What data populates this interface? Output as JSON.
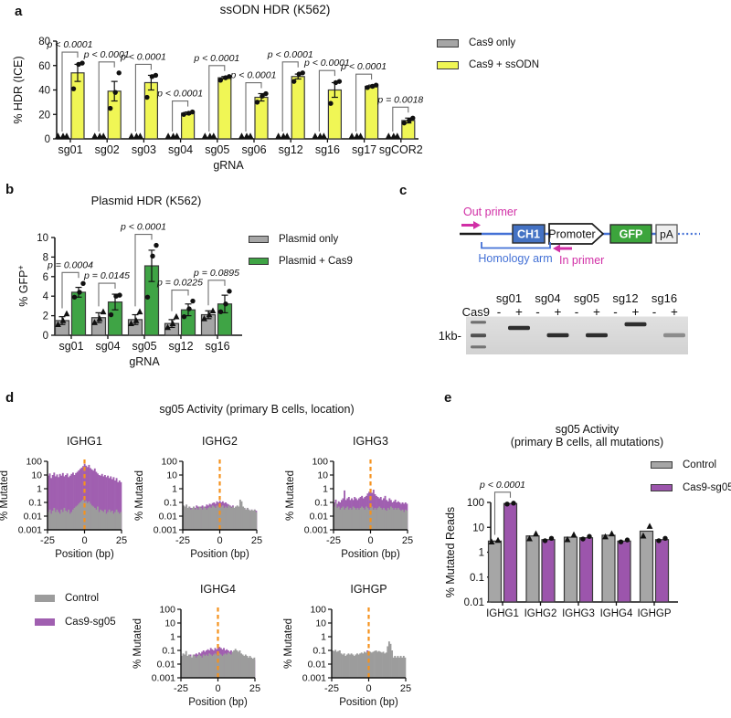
{
  "figure": {
    "panel_labels": {
      "a": "a",
      "b": "b",
      "c": "c",
      "d": "d",
      "e": "e"
    }
  },
  "chart_data": [
    {
      "id": "a",
      "type": "bar",
      "title": "ssODN HDR (K562)",
      "xlabel": "gRNA",
      "ylabel": "% HDR (ICE)",
      "ylim": [
        0,
        80
      ],
      "yticks": [
        0,
        20,
        40,
        60,
        80
      ],
      "categories": [
        "sg01",
        "sg02",
        "sg03",
        "sg04",
        "sg05",
        "sg06",
        "sg12",
        "sg16",
        "sg17",
        "sgCOR2"
      ],
      "series": [
        {
          "name": "Cas9 only",
          "color": "#A6A6A6",
          "marker": "triangle",
          "values": [
            0,
            0,
            0,
            0,
            0,
            0,
            0,
            0,
            0,
            0
          ],
          "errors": [
            0,
            0,
            0,
            0,
            0,
            0,
            0,
            0,
            0,
            0
          ],
          "points": [
            [
              0,
              0,
              0
            ],
            [
              0,
              0,
              0
            ],
            [
              0,
              0,
              0
            ],
            [
              0,
              0,
              0
            ],
            [
              0,
              0,
              0
            ],
            [
              0,
              0,
              0
            ],
            [
              0,
              0,
              0
            ],
            [
              0,
              0,
              0
            ],
            [
              0,
              0,
              0
            ],
            [
              0,
              0,
              0
            ]
          ]
        },
        {
          "name": "Cas9 + ssODN",
          "color": "#F0F655",
          "marker": "circle",
          "values": [
            54,
            39,
            46,
            21,
            50,
            34,
            51,
            40,
            43,
            15
          ],
          "errors": [
            7,
            8,
            6,
            1,
            1,
            3,
            2,
            6,
            1,
            2
          ],
          "points": [
            [
              41,
              61,
              62
            ],
            [
              25,
              38,
              54
            ],
            [
              34,
              51,
              52
            ],
            [
              20,
              21,
              22
            ],
            [
              48,
              50,
              51
            ],
            [
              30,
              35,
              37
            ],
            [
              47,
              53,
              54
            ],
            [
              29,
              46,
              47
            ],
            [
              42,
              43,
              44
            ],
            [
              13,
              15,
              17
            ]
          ]
        }
      ],
      "p_values": [
        "p < 0.0001",
        "p < 0.0001",
        "p < 0.0001",
        "p < 0.0001",
        "p < 0.0001",
        "p < 0.0001",
        "p < 0.0001",
        "p < 0.0001",
        "p < 0.0001",
        "p = 0.0018"
      ]
    },
    {
      "id": "b",
      "type": "bar",
      "title": "Plasmid HDR (K562)",
      "xlabel": "gRNA",
      "ylabel": "% GFP",
      "ylabel_sup": "+",
      "ylim": [
        0,
        10
      ],
      "yticks": [
        0,
        2,
        4,
        6,
        8,
        10
      ],
      "categories": [
        "sg01",
        "sg04",
        "sg05",
        "sg12",
        "sg16"
      ],
      "series": [
        {
          "name": "Plasmid only",
          "color": "#A6A6A6",
          "marker": "triangle",
          "values": [
            1.5,
            1.8,
            1.6,
            1.2,
            2.1
          ],
          "errors": [
            0.4,
            0.5,
            0.5,
            0.4,
            0.4
          ],
          "points": [
            [
              1.1,
              1.5,
              2.2
            ],
            [
              1.3,
              1.7,
              2.4
            ],
            [
              1.2,
              1.5,
              2.4
            ],
            [
              0.8,
              1.2,
              1.9
            ],
            [
              1.7,
              2.1,
              2.5
            ]
          ]
        },
        {
          "name": "Plasmid + Cas9",
          "color": "#3FA445",
          "marker": "circle",
          "values": [
            4.4,
            3.4,
            7.1,
            2.6,
            3.2
          ],
          "errors": [
            0.5,
            0.8,
            1.6,
            0.6,
            0.9
          ],
          "points": [
            [
              3.9,
              4.4,
              5.3
            ],
            [
              2.1,
              4.0,
              4.1
            ],
            [
              3.9,
              8.1,
              9.2
            ],
            [
              1.9,
              2.7,
              3.5
            ],
            [
              2.4,
              3.2,
              4.5
            ]
          ]
        }
      ],
      "p_values": [
        "p = 0.0004",
        "p = 0.0145",
        "p < 0.0001",
        "p = 0.0225",
        "p = 0.0895"
      ]
    },
    {
      "id": "d",
      "type": "histogram",
      "title": "sg05 Activity (primary B cells, location)",
      "xlabel": "Position (bp)",
      "ylabel": "% Mutated",
      "yscale": "log",
      "yticks": [
        100,
        10,
        1,
        0.1,
        0.01,
        0.001
      ],
      "xlim": [
        -25,
        25
      ],
      "xticks": [
        -25,
        0,
        25
      ],
      "cut_site_x": 0,
      "cut_site_color": "#F5921E",
      "legend": [
        {
          "name": "Control",
          "color": "#9C9C9C"
        },
        {
          "name": "Cas9-sg05",
          "color": "#A05FB0"
        }
      ],
      "subplots": [
        {
          "title": "IGHG1",
          "control": [
            0.02,
            0.03,
            0.015,
            0.025,
            0.04,
            0.02,
            0.03,
            0.02,
            0.015,
            0.03,
            0.02,
            0.04,
            0.025,
            0.02,
            0.03,
            0.015,
            0.02,
            0.03,
            0.04,
            0.05,
            0.06,
            0.08,
            0.1,
            0.13,
            0.16,
            0.11,
            0.13,
            0.09,
            0.12,
            0.08,
            0.06,
            0.05,
            0.04,
            0.03,
            0.05,
            0.02,
            0.03,
            0.025,
            0.02,
            0.03,
            0.015,
            0.02,
            0.03,
            0.02,
            0.025,
            0.015,
            0.02,
            0.03,
            0.02,
            0.015,
            0.02
          ],
          "cas9": [
            9,
            13,
            6,
            10,
            15,
            8,
            11,
            7,
            12,
            9,
            14,
            8,
            10,
            13,
            7,
            9,
            12,
            15,
            10,
            14,
            17,
            22,
            28,
            35,
            45,
            65,
            48,
            38,
            55,
            32,
            26,
            21,
            30,
            17,
            13,
            10,
            9,
            12,
            8,
            10,
            7,
            9,
            6,
            8,
            5,
            7,
            4,
            6,
            3,
            4,
            3
          ]
        },
        {
          "title": "IGHG2",
          "control": [
            0.06,
            0.05,
            0.07,
            0.04,
            0.05,
            0.03,
            0.04,
            0.05,
            0.03,
            0.04,
            0.03,
            0.05,
            0.04,
            0.03,
            0.05,
            0.04,
            0.03,
            0.04,
            0.05,
            0.04,
            0.06,
            0.05,
            0.04,
            0.06,
            0.05,
            0.04,
            0.05,
            0.06,
            0.04,
            0.05,
            0.04,
            0.06,
            0.05,
            0.04,
            0.05,
            0.04,
            0.05,
            0.06,
            0.05,
            0.16,
            0.12,
            0.05,
            0.04,
            0.03,
            0.04,
            0.03,
            0.025,
            0.03,
            0.025,
            0.03,
            0.02
          ],
          "cas9": [
            0.05,
            0.04,
            0.06,
            0.03,
            0.05,
            0.04,
            0.03,
            0.05,
            0.04,
            0.06,
            0.05,
            0.04,
            0.05,
            0.06,
            0.04,
            0.05,
            0.07,
            0.06,
            0.08,
            0.07,
            0.09,
            0.1,
            0.08,
            0.12,
            0.1,
            0.13,
            0.1,
            0.12,
            0.09,
            0.1,
            0.08,
            0.07,
            0.06,
            0.05,
            0.06,
            0.04,
            0.05,
            0.04,
            0.03,
            0.04,
            0.05,
            0.03,
            0.04,
            0.03,
            0.04,
            0.03,
            0.025,
            0.03,
            0.025,
            0.03,
            0.025
          ]
        },
        {
          "title": "IGHG3",
          "control": [
            0.05,
            0.09,
            0.04,
            0.05,
            0.03,
            0.04,
            0.05,
            0.03,
            0.04,
            0.05,
            0.03,
            0.04,
            0.03,
            0.05,
            0.04,
            0.03,
            0.04,
            0.03,
            0.04,
            0.05,
            0.04,
            0.03,
            0.05,
            0.04,
            0.03,
            0.04,
            0.05,
            0.03,
            0.04,
            0.03,
            0.04,
            0.05,
            0.04,
            0.03,
            0.04,
            0.03,
            0.025,
            0.04,
            0.03,
            0.05,
            0.04,
            0.03,
            0.04,
            0.03,
            0.04,
            0.03,
            0.025,
            0.03,
            0.02,
            0.03,
            0.025
          ],
          "cas9": [
            0.1,
            0.16,
            0.08,
            0.12,
            0.1,
            0.15,
            0.2,
            0.75,
            0.15,
            0.2,
            0.25,
            0.15,
            0.2,
            0.15,
            0.25,
            0.2,
            0.15,
            0.2,
            0.25,
            0.3,
            0.2,
            0.25,
            0.3,
            0.45,
            0.6,
            1.0,
            0.5,
            0.85,
            0.4,
            0.3,
            0.25,
            0.2,
            0.25,
            0.15,
            0.2,
            0.3,
            0.15,
            0.12,
            0.2,
            0.15,
            0.1,
            0.12,
            0.16,
            0.1,
            0.12,
            0.1,
            0.08,
            0.1,
            0.08,
            0.1,
            0.08
          ]
        },
        {
          "title": "IGHG4",
          "control": [
            0.04,
            0.06,
            0.05,
            0.09,
            0.04,
            0.05,
            0.04,
            0.03,
            0.05,
            0.04,
            0.03,
            0.04,
            0.05,
            0.04,
            0.03,
            0.05,
            0.04,
            0.05,
            0.04,
            0.06,
            0.05,
            0.04,
            0.05,
            0.06,
            0.05,
            0.04,
            0.06,
            0.05,
            0.04,
            0.05,
            0.06,
            0.05,
            0.07,
            0.06,
            0.05,
            0.08,
            0.1,
            0.13,
            0.1,
            0.08,
            0.1,
            0.06,
            0.05,
            0.04,
            0.05,
            0.04,
            0.03,
            0.04,
            0.03,
            0.025,
            0.03
          ],
          "cas9": [
            0.04,
            0.05,
            0.03,
            0.04,
            0.03,
            0.04,
            0.05,
            0.03,
            0.04,
            0.05,
            0.06,
            0.05,
            0.07,
            0.06,
            0.08,
            0.1,
            0.08,
            0.1,
            0.12,
            0.1,
            0.15,
            0.12,
            0.1,
            0.15,
            0.12,
            0.15,
            0.18,
            0.15,
            0.12,
            0.15,
            0.1,
            0.12,
            0.1,
            0.08,
            0.1,
            0.06,
            0.05,
            0.04,
            0.05,
            0.03,
            0.04,
            0.03,
            0.025,
            0.03,
            0.02,
            0.025,
            0.02,
            0.015,
            0.02,
            0.015,
            0.02
          ]
        },
        {
          "title": "IGHGP",
          "control": [
            0.1,
            0.09,
            0.11,
            0.08,
            0.09,
            0.1,
            0.06,
            0.05,
            0.06,
            0.04,
            0.05,
            0.06,
            0.05,
            0.06,
            0.05,
            0.04,
            0.05,
            0.06,
            0.05,
            0.06,
            0.07,
            0.06,
            0.08,
            0.07,
            0.08,
            0.09,
            0.08,
            0.07,
            0.08,
            0.09,
            0.1,
            0.08,
            0.09,
            0.08,
            0.07,
            0.08,
            0.06,
            0.07,
            0.2,
            0.45,
            0.3,
            0.1,
            0.03,
            0.04,
            0.03,
            0.04,
            0.03,
            0.04,
            0.03,
            0.04,
            0.03
          ],
          "cas9": [
            0,
            0,
            0,
            0,
            0,
            0,
            0,
            0,
            0,
            0,
            0,
            0,
            0,
            0.04,
            0,
            0,
            0,
            0,
            0,
            0,
            0,
            0,
            0.06,
            0,
            0.1,
            0.09,
            0,
            0.05,
            0,
            0,
            0,
            0,
            0,
            0,
            0,
            0,
            0,
            0,
            0,
            0,
            0,
            0,
            0,
            0,
            0,
            0,
            0,
            0,
            0,
            0,
            0
          ]
        }
      ]
    },
    {
      "id": "e",
      "type": "bar",
      "title": "sg05 Activity",
      "subtitle": "(primary B cells, all mutations)",
      "ylabel": "% Mutated Reads",
      "yscale": "log",
      "ylim": [
        0.01,
        100
      ],
      "yticks": [
        100,
        10,
        1,
        0.1,
        0.01
      ],
      "categories": [
        "IGHG1",
        "IGHG2",
        "IGHG3",
        "IGHG4",
        "IGHGP"
      ],
      "series": [
        {
          "name": "Control",
          "color": "#A6A6A6",
          "marker": "triangle",
          "values": [
            2.8,
            4.5,
            4.0,
            4.8,
            7.0
          ],
          "errors": [
            0,
            0,
            0,
            0,
            0
          ],
          "points": [
            [
              2.6,
              3.0
            ],
            [
              3.5,
              5.5
            ],
            [
              3.2,
              5.0
            ],
            [
              4.2,
              5.5
            ],
            [
              4.5,
              11
            ]
          ]
        },
        {
          "name": "Cas9-sg05",
          "color": "#9C55AC",
          "marker": "circle",
          "values": [
            90,
            3.2,
            3.8,
            2.8,
            3.2
          ],
          "errors": [
            0,
            0,
            0,
            0,
            0
          ],
          "points": [
            [
              86,
              93
            ],
            [
              2.9,
              3.6
            ],
            [
              3.4,
              4.3
            ],
            [
              2.6,
              3.1
            ],
            [
              2.9,
              3.6
            ]
          ]
        }
      ],
      "p_values": [
        "p < 0.0001",
        "",
        "",
        "",
        ""
      ]
    }
  ],
  "panel_c": {
    "construct": {
      "out_primer_label": "Out primer",
      "in_primer_label": "In primer",
      "homology_arm_label": "Homology arm",
      "segments": [
        {
          "label": "CH1",
          "fill": "#4472C4",
          "text_color": "#ffffff"
        },
        {
          "label": "Promoter",
          "fill": "#ffffff",
          "text_color": "#111111"
        },
        {
          "label": "GFP",
          "fill": "#3CA53C",
          "text_color": "#ffffff"
        },
        {
          "label": "pA",
          "fill": "#EEEEEE",
          "text_color": "#111111"
        }
      ],
      "colors": {
        "primer": "#D12FA6",
        "arm": "#4471D6",
        "line_blue": "#4471D6",
        "line_black": "#1a1a1a"
      }
    },
    "gel": {
      "cas9_row_label": "Cas9",
      "minus": "-",
      "plus": "+",
      "marker_label": "1kb-",
      "lanes": [
        "sg01",
        "sg04",
        "sg05",
        "sg12",
        "sg16"
      ],
      "plus_band_offsets": [
        -8,
        0,
        0,
        -12,
        0
      ],
      "plus_band_intensity": [
        1,
        1,
        1,
        1,
        0.45
      ],
      "ladder_band_offsets": [
        -14,
        0,
        13
      ]
    }
  }
}
